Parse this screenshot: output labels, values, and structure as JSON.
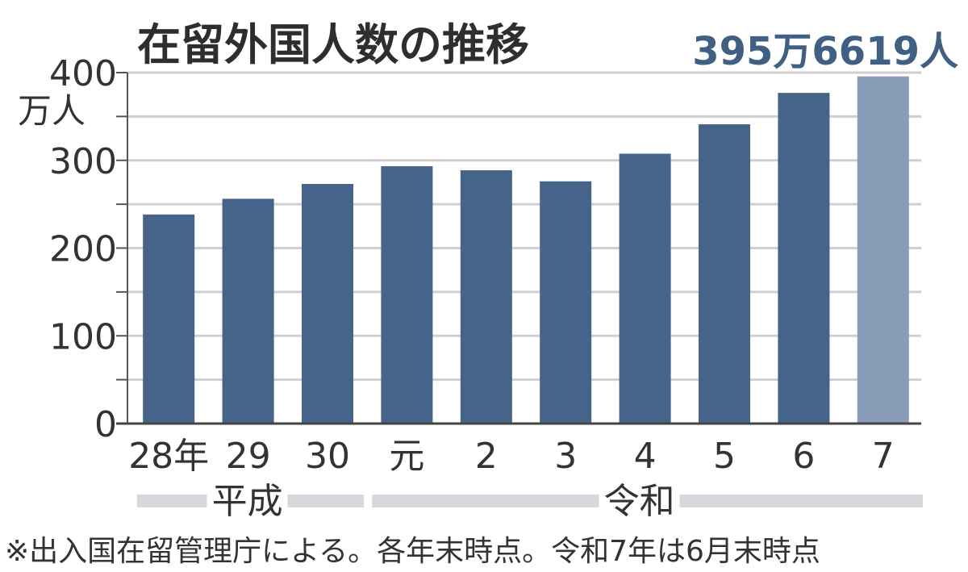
{
  "chart_data": {
    "type": "bar",
    "title": "在留外国人数の推移",
    "callout": "395万6619人",
    "y_unit": "万人",
    "ylim": [
      0,
      400
    ],
    "yticks": [
      0,
      100,
      200,
      300,
      400
    ],
    "grid": true,
    "categories": [
      "28年",
      "29",
      "30",
      "元",
      "2",
      "3",
      "4",
      "5",
      "6",
      "7"
    ],
    "values": [
      238.3,
      256.2,
      273.1,
      293.3,
      288.7,
      276.1,
      307.6,
      341.1,
      376.9,
      395.7
    ],
    "eras": [
      {
        "label": "平成",
        "categories": [
          "28年",
          "29",
          "30"
        ]
      },
      {
        "label": "令和",
        "categories": [
          "元",
          "2",
          "3",
          "4",
          "5",
          "6",
          "7"
        ]
      }
    ],
    "bar_color": "#46648a",
    "highlight_color": "#8a9db8",
    "highlight_index": 9,
    "note": "※出入国在留管理庁による。各年末時点。令和7年は6月末時点"
  }
}
